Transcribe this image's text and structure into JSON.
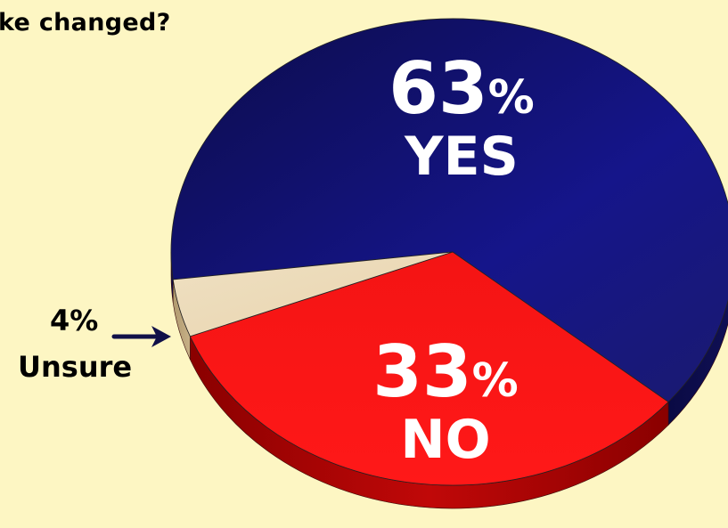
{
  "title": "ke changed?",
  "chart_data": {
    "type": "pie",
    "title": "ke changed?",
    "slices": [
      {
        "label": "YES",
        "value": 63,
        "display_value": "63",
        "unit": "%",
        "color": "#1c1c8c"
      },
      {
        "label": "NO",
        "value": 33,
        "display_value": "33",
        "unit": "%",
        "color": "#f01010"
      },
      {
        "label": "Unsure",
        "value": 4,
        "display_value": "4%",
        "unit": "%",
        "color": "#efdfc0"
      }
    ],
    "style": "3d-tilted",
    "background": "#fdf6c3"
  }
}
